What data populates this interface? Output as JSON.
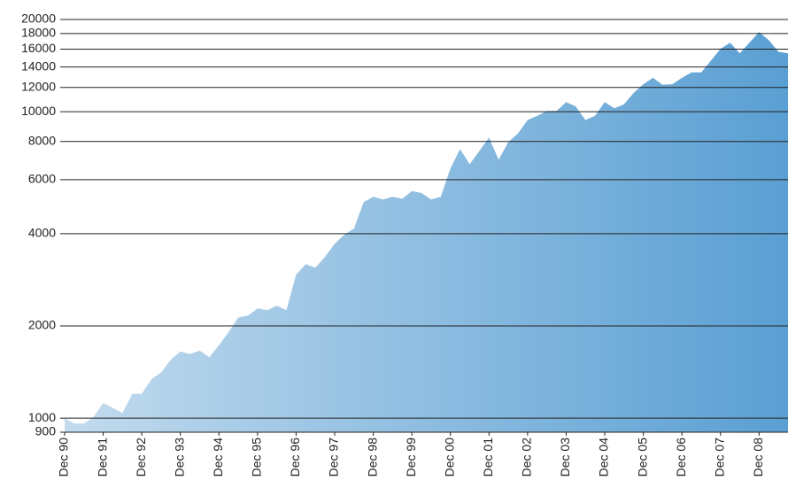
{
  "chart_data": {
    "type": "area",
    "x": [
      "1990-12",
      "1991-03",
      "1991-06",
      "1991-09",
      "1991-12",
      "1992-03",
      "1992-06",
      "1992-09",
      "1992-12",
      "1993-03",
      "1993-06",
      "1993-09",
      "1993-12",
      "1994-03",
      "1994-06",
      "1994-09",
      "1994-12",
      "1995-03",
      "1995-06",
      "1995-09",
      "1995-12",
      "1996-03",
      "1996-06",
      "1996-09",
      "1996-12",
      "1997-03",
      "1997-06",
      "1997-09",
      "1997-12",
      "1998-03",
      "1998-06",
      "1998-09",
      "1998-12",
      "1999-03",
      "1999-06",
      "1999-09",
      "1999-12",
      "2000-03",
      "2000-06",
      "2000-09",
      "2000-12",
      "2001-03",
      "2001-06",
      "2001-09",
      "2001-12",
      "2002-03",
      "2002-06",
      "2002-09",
      "2002-12",
      "2003-03",
      "2003-06",
      "2003-09",
      "2003-12",
      "2004-03",
      "2004-06",
      "2004-09",
      "2004-12",
      "2005-03",
      "2005-06",
      "2005-09",
      "2005-12",
      "2006-03",
      "2006-06",
      "2006-09",
      "2006-12",
      "2007-03",
      "2007-06",
      "2007-09",
      "2007-12",
      "2008-03",
      "2008-06",
      "2008-09",
      "2008-12",
      "2009-03",
      "2009-06",
      "2009-09"
    ],
    "values": [
      1000,
      960,
      960,
      1010,
      1120,
      1080,
      1040,
      1200,
      1200,
      1340,
      1410,
      1550,
      1650,
      1620,
      1660,
      1580,
      1730,
      1910,
      2130,
      2160,
      2280,
      2250,
      2330,
      2250,
      2940,
      3180,
      3100,
      3360,
      3710,
      3970,
      4160,
      5070,
      5280,
      5170,
      5280,
      5200,
      5510,
      5430,
      5170,
      5280,
      6530,
      7550,
      6740,
      7450,
      8230,
      6970,
      7960,
      8490,
      9400,
      9700,
      10060,
      10060,
      10750,
      10400,
      9400,
      9700,
      10750,
      10260,
      10580,
      11520,
      12300,
      12900,
      12240,
      12300,
      12900,
      13430,
      13430,
      14680,
      16040,
      16800,
      15500,
      16800,
      18200,
      17140,
      15700,
      15500
    ],
    "gradient": [
      "#c2dbee",
      "#5a9fd3"
    ],
    "xlim": [
      "1990-12",
      "2009-09"
    ],
    "xticks": [
      {
        "value": "1990-12",
        "label": "Dec 90"
      },
      {
        "value": "1991-12",
        "label": "Dec 91"
      },
      {
        "value": "1992-12",
        "label": "Dec 92"
      },
      {
        "value": "1993-12",
        "label": "Dec 93"
      },
      {
        "value": "1994-12",
        "label": "Dec 94"
      },
      {
        "value": "1995-12",
        "label": "Dec 95"
      },
      {
        "value": "1996-12",
        "label": "Dec 96"
      },
      {
        "value": "1997-12",
        "label": "Dec 97"
      },
      {
        "value": "1998-12",
        "label": "Dec 98"
      },
      {
        "value": "1999-12",
        "label": "Dec 99"
      },
      {
        "value": "2000-12",
        "label": "Dec 00"
      },
      {
        "value": "2001-12",
        "label": "Dec 01"
      },
      {
        "value": "2002-12",
        "label": "Dec 02"
      },
      {
        "value": "2003-12",
        "label": "Dec 03"
      },
      {
        "value": "2004-12",
        "label": "Dec 04"
      },
      {
        "value": "2005-12",
        "label": "Dec 05"
      },
      {
        "value": "2006-12",
        "label": "Dec 06"
      },
      {
        "value": "2007-12",
        "label": "Dec 07"
      },
      {
        "value": "2008-12",
        "label": "Dec 08"
      }
    ],
    "ylim": [
      900,
      20000
    ],
    "yticks": [
      900,
      1000,
      2000,
      4000,
      6000,
      8000,
      10000,
      12000,
      14000,
      16000,
      18000,
      20000
    ],
    "log_scale": true,
    "grid": true
  }
}
